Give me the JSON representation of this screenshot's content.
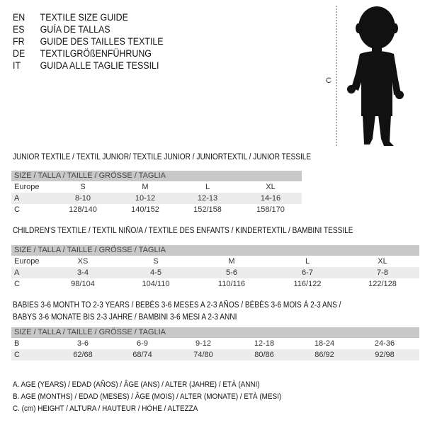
{
  "languages": [
    {
      "code": "EN",
      "text": "TEXTILE SIZE GUIDE"
    },
    {
      "code": "ES",
      "text": "GUÍA DE TALLAS"
    },
    {
      "code": "FR",
      "text": "GUIDE DES TAILLES TEXTILE"
    },
    {
      "code": "DE",
      "text": "TEXTILGRÖßENFÜHRUNG"
    },
    {
      "code": "IT",
      "text": "GUIDA ALLE TAGLIE TESSILI"
    }
  ],
  "figure": {
    "measure_label": "C"
  },
  "junior": {
    "title": "JUNIOR TEXTILE / TEXTIL JUNIOR/ TEXTILE JUNIOR / JUNIORTEXTIL / JUNIOR TESSILE",
    "header": "SIZE / TALLA / TAILLE / GRÖSSE / TAGLIA",
    "rows": [
      {
        "label": "Europe",
        "cells": [
          "S",
          "M",
          "L",
          "XL"
        ]
      },
      {
        "label": "A",
        "cells": [
          "8-10",
          "10-12",
          "12-13",
          "14-16"
        ]
      },
      {
        "label": "C",
        "cells": [
          "128/140",
          "140/152",
          "152/158",
          "158/170"
        ]
      }
    ]
  },
  "children": {
    "title": "CHILDREN'S TEXTILE / TEXTIL NIÑO/A / TEXTILE DES ENFANTS / KINDERTEXTIL / BAMBINI TESSILE",
    "header": "SIZE / TALLA / TAILLE / GRÖSSE / TAGLIA",
    "rows": [
      {
        "label": "Europe",
        "cells": [
          "XS",
          "S",
          "M",
          "L",
          "XL"
        ]
      },
      {
        "label": "A",
        "cells": [
          "3-4",
          "4-5",
          "5-6",
          "6-7",
          "7-8"
        ]
      },
      {
        "label": "C",
        "cells": [
          "98/104",
          "104/110",
          "110/116",
          "116/122",
          "122/128"
        ]
      }
    ]
  },
  "babies": {
    "title_line1": "BABIES 3-6 MONTH TO 2-3 YEARS / BEBÉS 3-6 MESES A 2-3 AÑOS / BÉBÉS 3-6 MOIS À 2-3 ANS /",
    "title_line2": "BABYS 3-6 MONATE BIS 2-3 JAHRE / BAMBINI 3-6 MESI A 2-3 ANNI",
    "header": "SIZE / TALLA / TAILLE / GRÖSSE / TAGLIA",
    "rows": [
      {
        "label": "B",
        "cells": [
          "3-6",
          "6-9",
          "9-12",
          "12-18",
          "18-24",
          "24-36"
        ]
      },
      {
        "label": "C",
        "cells": [
          "62/68",
          "68/74",
          "74/80",
          "80/86",
          "86/92",
          "92/98"
        ]
      }
    ]
  },
  "legend": [
    "A. AGE (YEARS) / EDAD (AÑOS) / ÂGE (ANS) / ALTER (JAHRE) / ETÀ (ANNI)",
    "B. AGE (MONTHS) / EDAD (MESES) / ÂGE (MOIS) / ALTER (MONATE) / ETÀ (MESI)",
    "C. (cm) HEIGHT / ALTURA / HAUTEUR / HÖHE / ALTEZZA"
  ]
}
